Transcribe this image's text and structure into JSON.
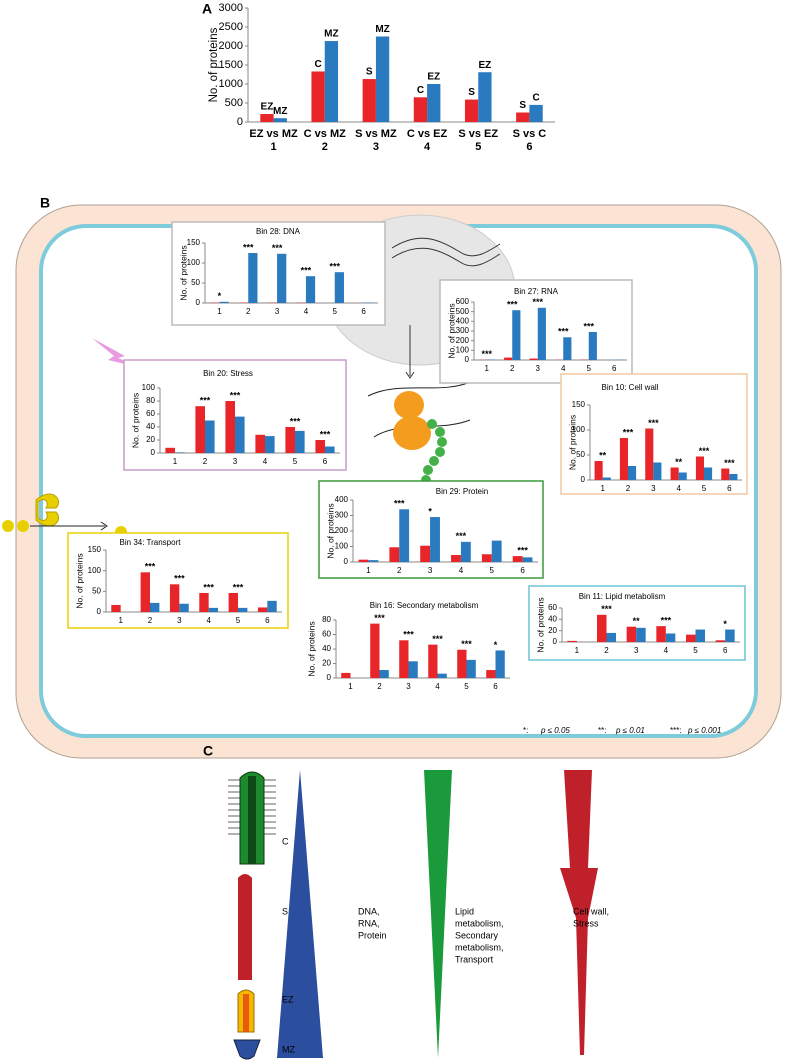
{
  "panel_labels": [
    "A",
    "B",
    "C"
  ],
  "chart_data": [
    {
      "type": "bar",
      "y_label": "No. of proteins",
      "categories": [
        "EZ vs MZ",
        "C vs MZ",
        "S vs MZ",
        "C vs EZ",
        "S vs EZ",
        "S vs C"
      ],
      "category_ids": [
        "1",
        "2",
        "3",
        "4",
        "5",
        "6"
      ],
      "ylim": [
        0,
        3000
      ],
      "yticks": [
        0,
        500,
        1000,
        1500,
        2000,
        2500,
        3000
      ],
      "series": [
        {
          "color": "#e8262a",
          "values": [
            210,
            1330,
            1130,
            650,
            590,
            250
          ],
          "bar_labels": [
            "EZ",
            "C",
            "S",
            "C",
            "S",
            "S"
          ]
        },
        {
          "color": "#2a7ac0",
          "values": [
            100,
            2130,
            2250,
            1000,
            1310,
            450
          ],
          "bar_labels": [
            "MZ",
            "MZ",
            "MZ",
            "EZ",
            "EZ",
            "C"
          ]
        }
      ]
    },
    {
      "type": "bar",
      "title": "Bin 28: DNA",
      "y_label": "No. of proteins",
      "categories": [
        "1",
        "2",
        "3",
        "4",
        "5",
        "6"
      ],
      "ylim": [
        0,
        150
      ],
      "yticks": [
        0,
        50,
        100,
        150
      ],
      "border_color": "#bbbbbb",
      "stars": [
        "*",
        "***",
        "***",
        "***",
        "***",
        null
      ],
      "series": [
        {
          "color": "#e8262a",
          "values": [
            1,
            1,
            1,
            1,
            0,
            0
          ]
        },
        {
          "color": "#2a7ac0",
          "values": [
            3,
            125,
            123,
            67,
            77,
            1
          ]
        }
      ]
    },
    {
      "type": "bar",
      "title": "Bin 27: RNA",
      "y_label": "No. of proteins",
      "categories": [
        "1",
        "2",
        "3",
        "4",
        "5",
        "6"
      ],
      "ylim": [
        0,
        600
      ],
      "yticks": [
        0,
        100,
        200,
        300,
        400,
        500,
        600
      ],
      "border_color": "#bbbbbb",
      "stars": [
        "***",
        "***",
        "***",
        "***",
        "***",
        null
      ],
      "series": [
        {
          "color": "#e8262a",
          "values": [
            2,
            25,
            15,
            2,
            3,
            0
          ]
        },
        {
          "color": "#2a7ac0",
          "values": [
            5,
            515,
            540,
            235,
            290,
            3
          ]
        }
      ]
    },
    {
      "type": "bar",
      "title": "Bin 20: Stress",
      "y_label": "No. of proteins",
      "categories": [
        "1",
        "2",
        "3",
        "4",
        "5",
        "6"
      ],
      "ylim": [
        0,
        100
      ],
      "yticks": [
        0,
        20,
        40,
        60,
        80,
        100
      ],
      "border_color": "#c99ccb",
      "stars": [
        null,
        "***",
        "***",
        null,
        "***",
        "***"
      ],
      "series": [
        {
          "color": "#e8262a",
          "values": [
            8,
            72,
            80,
            28,
            40,
            20
          ]
        },
        {
          "color": "#2a7ac0",
          "values": [
            1,
            50,
            56,
            26,
            34,
            10
          ]
        }
      ]
    },
    {
      "type": "bar",
      "title": "Bin 10: Cell wall",
      "y_label": "No. of proteins",
      "categories": [
        "1",
        "2",
        "3",
        "4",
        "5",
        "6"
      ],
      "ylim": [
        0,
        150
      ],
      "yticks": [
        0,
        50,
        100,
        150
      ],
      "border_color": "#f2c9a2",
      "stars": [
        "**",
        "***",
        "***",
        "**",
        "***",
        "***"
      ],
      "series": [
        {
          "color": "#e8262a",
          "values": [
            38,
            84,
            103,
            25,
            47,
            23
          ]
        },
        {
          "color": "#2a7ac0",
          "values": [
            5,
            28,
            35,
            15,
            25,
            12
          ]
        }
      ]
    },
    {
      "type": "bar",
      "title": "Bin 29: Protein",
      "y_label": "No. of proteins",
      "categories": [
        "1",
        "2",
        "3",
        "4",
        "5",
        "6"
      ],
      "ylim": [
        0,
        400
      ],
      "yticks": [
        0,
        100,
        200,
        300,
        400
      ],
      "border_color": "#3a9a3a",
      "stars": [
        null,
        "***",
        "*",
        "***",
        null,
        "***"
      ],
      "series": [
        {
          "color": "#e8262a",
          "values": [
            15,
            95,
            105,
            45,
            50,
            38
          ]
        },
        {
          "color": "#2a7ac0",
          "values": [
            12,
            340,
            290,
            130,
            138,
            30
          ]
        }
      ]
    },
    {
      "type": "bar",
      "title": "Bin 34: Transport",
      "y_label": "No. of proteins",
      "categories": [
        "1",
        "2",
        "3",
        "4",
        "5",
        "6"
      ],
      "ylim": [
        0,
        150
      ],
      "yticks": [
        0,
        50,
        100,
        150
      ],
      "border_color": "#e8d000",
      "stars": [
        null,
        "***",
        "***",
        "***",
        "***",
        null
      ],
      "series": [
        {
          "color": "#e8262a",
          "values": [
            17,
            96,
            67,
            46,
            46,
            11
          ]
        },
        {
          "color": "#2a7ac0",
          "values": [
            0,
            22,
            20,
            10,
            10,
            27
          ]
        }
      ]
    },
    {
      "type": "bar",
      "title": "Bin 16: Secondary metabolism",
      "y_label": "No. of proteins",
      "categories": [
        "1",
        "2",
        "3",
        "4",
        "5",
        "6"
      ],
      "ylim": [
        0,
        80
      ],
      "yticks": [
        0,
        20,
        40,
        60,
        80
      ],
      "border_color": null,
      "stars": [
        null,
        "***",
        "***",
        "***",
        "***",
        "*"
      ],
      "series": [
        {
          "color": "#e8262a",
          "values": [
            7,
            75,
            52,
            46,
            39,
            11
          ]
        },
        {
          "color": "#2a7ac0",
          "values": [
            0,
            11,
            23,
            6,
            25,
            38
          ]
        }
      ]
    },
    {
      "type": "bar",
      "title": "Bin 11: Lipid metabolism",
      "y_label": "No. of proteins",
      "categories": [
        "1",
        "2",
        "3",
        "4",
        "5",
        "6"
      ],
      "ylim": [
        0,
        60
      ],
      "yticks": [
        0,
        20,
        40,
        60
      ],
      "border_color": "#6cc3d4",
      "stars": [
        null,
        "***",
        "**",
        "***",
        null,
        "*"
      ],
      "series": [
        {
          "color": "#e8262a",
          "values": [
            2,
            48,
            27,
            28,
            13,
            3
          ]
        },
        {
          "color": "#2a7ac0",
          "values": [
            0,
            16,
            25,
            15,
            22,
            22
          ]
        }
      ]
    }
  ],
  "significance_legend": [
    {
      "stars": "*:",
      "text": "p ≤ 0.05"
    },
    {
      "stars": "**:",
      "text": "p ≤ 0.01"
    },
    {
      "stars": "***:",
      "text": "p ≤ 0.001"
    }
  ],
  "panel_c": {
    "zones": [
      "C",
      "S",
      "EZ",
      "MZ"
    ],
    "gradients": [
      {
        "color": "#2b4f9e",
        "lines": [
          "DNA,",
          "RNA,",
          "Protein"
        ]
      },
      {
        "color": "#1a9a3a",
        "lines": [
          "Lipid",
          "metabolism,",
          "Secondary",
          "metabolism,",
          "Transport"
        ]
      },
      {
        "color": "#d0202a",
        "lines": [
          "Cell wall,",
          "Stress"
        ]
      }
    ]
  }
}
